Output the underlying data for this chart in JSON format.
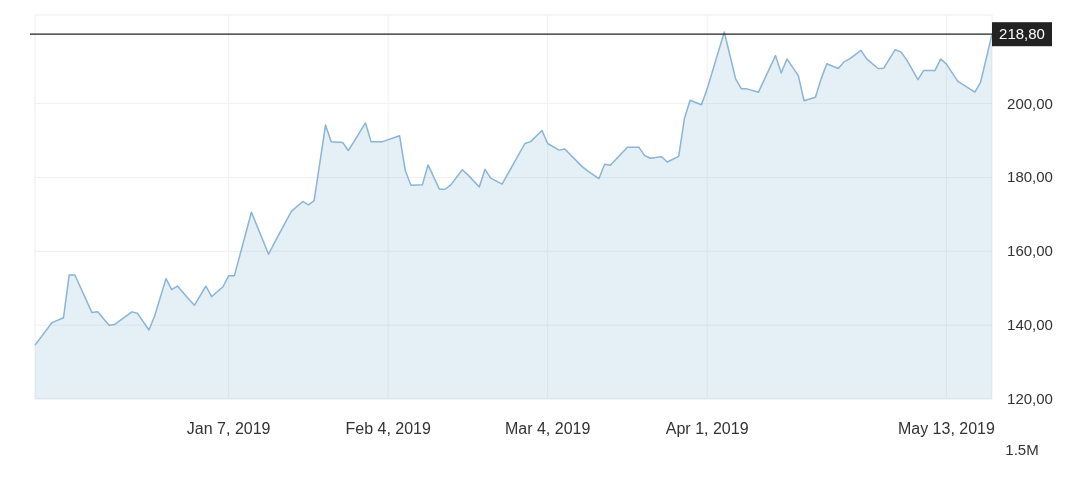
{
  "chart_data": {
    "type": "area",
    "x": [
      "2018-12-04",
      "2018-12-07",
      "2018-12-09",
      "2018-12-10",
      "2018-12-11",
      "2018-12-14",
      "2018-12-15",
      "2018-12-17",
      "2018-12-18",
      "2018-12-21",
      "2018-12-22",
      "2018-12-24",
      "2018-12-25",
      "2018-12-27",
      "2018-12-28",
      "2018-12-29",
      "2018-12-31",
      "2019-01-01",
      "2019-01-03",
      "2019-01-04",
      "2019-01-06",
      "2019-01-07",
      "2019-01-08",
      "2019-01-10",
      "2019-01-11",
      "2019-01-14",
      "2019-01-15",
      "2019-01-18",
      "2019-01-20",
      "2019-01-21",
      "2019-01-22",
      "2019-01-24",
      "2019-01-25",
      "2019-01-27",
      "2019-01-28",
      "2019-01-29",
      "2019-01-31",
      "2019-02-01",
      "2019-02-03",
      "2019-02-06",
      "2019-02-07",
      "2019-02-08",
      "2019-02-10",
      "2019-02-11",
      "2019-02-13",
      "2019-02-14",
      "2019-02-15",
      "2019-02-17",
      "2019-02-18",
      "2019-02-20",
      "2019-02-21",
      "2019-02-22",
      "2019-02-24",
      "2019-02-28",
      "2019-03-01",
      "2019-03-03",
      "2019-03-04",
      "2019-03-06",
      "2019-03-07",
      "2019-03-10",
      "2019-03-11",
      "2019-03-13",
      "2019-03-14",
      "2019-03-15",
      "2019-03-18",
      "2019-03-20",
      "2019-03-21",
      "2019-03-22",
      "2019-03-24",
      "2019-03-25",
      "2019-03-27",
      "2019-03-28",
      "2019-03-29",
      "2019-03-31",
      "2019-04-01",
      "2019-04-04",
      "2019-04-06",
      "2019-04-07",
      "2019-04-08",
      "2019-04-10",
      "2019-04-13",
      "2019-04-14",
      "2019-04-15",
      "2019-04-17",
      "2019-04-18",
      "2019-04-20",
      "2019-04-21",
      "2019-04-22",
      "2019-04-24",
      "2019-04-25",
      "2019-04-26",
      "2019-04-28",
      "2019-04-29",
      "2019-05-01",
      "2019-05-02",
      "2019-05-04",
      "2019-05-05",
      "2019-05-06",
      "2019-05-08",
      "2019-05-09",
      "2019-05-11",
      "2019-05-12",
      "2019-05-13",
      "2019-05-15",
      "2019-05-16",
      "2019-05-18",
      "2019-05-19",
      "2019-05-21"
    ],
    "series": [
      {
        "color": "#8ab4d8",
        "values": [
          134.6,
          140.7,
          142.0,
          153.6,
          153.6,
          143.4,
          143.6,
          140.0,
          140.2,
          143.6,
          143.2,
          138.7,
          142.5,
          152.6,
          149.6,
          150.6,
          147.0,
          145.4,
          150.6,
          147.7,
          150.4,
          153.4,
          153.4,
          164.9,
          170.6,
          159.2,
          162.2,
          170.8,
          173.5,
          172.6,
          173.7,
          194.2,
          189.7,
          189.5,
          187.3,
          189.7,
          194.8,
          189.7,
          189.7,
          191.3,
          181.9,
          177.9,
          178.0,
          183.4,
          176.8,
          176.8,
          178.0,
          182.1,
          180.7,
          177.4,
          182.2,
          179.8,
          178.2,
          189.2,
          189.7,
          192.7,
          189.2,
          187.4,
          187.7,
          183.0,
          181.8,
          179.7,
          183.6,
          183.3,
          188.2,
          188.2,
          186.0,
          185.2,
          185.6,
          184.2,
          185.7,
          195.9,
          200.9,
          199.7,
          204.0,
          219.4,
          206.7,
          204.0,
          204.0,
          203.1,
          213.0,
          208.3,
          212.1,
          207.6,
          200.8,
          201.7,
          206.7,
          210.8,
          209.5,
          211.3,
          212.1,
          214.4,
          212.1,
          209.5,
          209.6,
          214.6,
          214.0,
          211.9,
          206.5,
          209.0,
          209.0,
          212.1,
          210.7,
          206.0,
          205.1,
          203.1,
          205.8,
          218.8
        ]
      }
    ],
    "xlim": [
      "2018-12-04",
      "2019-05-21"
    ],
    "xticks": [
      {
        "value": "2019-01-07",
        "label": "Jan 7, 2019"
      },
      {
        "value": "2019-02-04",
        "label": "Feb 4, 2019"
      },
      {
        "value": "2019-03-04",
        "label": "Mar 4, 2019"
      },
      {
        "value": "2019-04-01",
        "label": "Apr 1, 2019"
      },
      {
        "value": "2019-05-13",
        "label": "May 13, 2019"
      }
    ],
    "ylim": [
      120,
      224
    ],
    "yticks": [
      {
        "value": 120,
        "label": "120,00"
      },
      {
        "value": 140,
        "label": "140,00"
      },
      {
        "value": 160,
        "label": "160,00"
      },
      {
        "value": 180,
        "label": "180,00"
      },
      {
        "value": 200,
        "label": "200,00"
      }
    ],
    "ref_lines": [
      {
        "axis": "y",
        "value": 218.8,
        "label": "218,80",
        "color": "#222222"
      }
    ],
    "grid": true,
    "annotations": [
      "1.5M"
    ]
  }
}
